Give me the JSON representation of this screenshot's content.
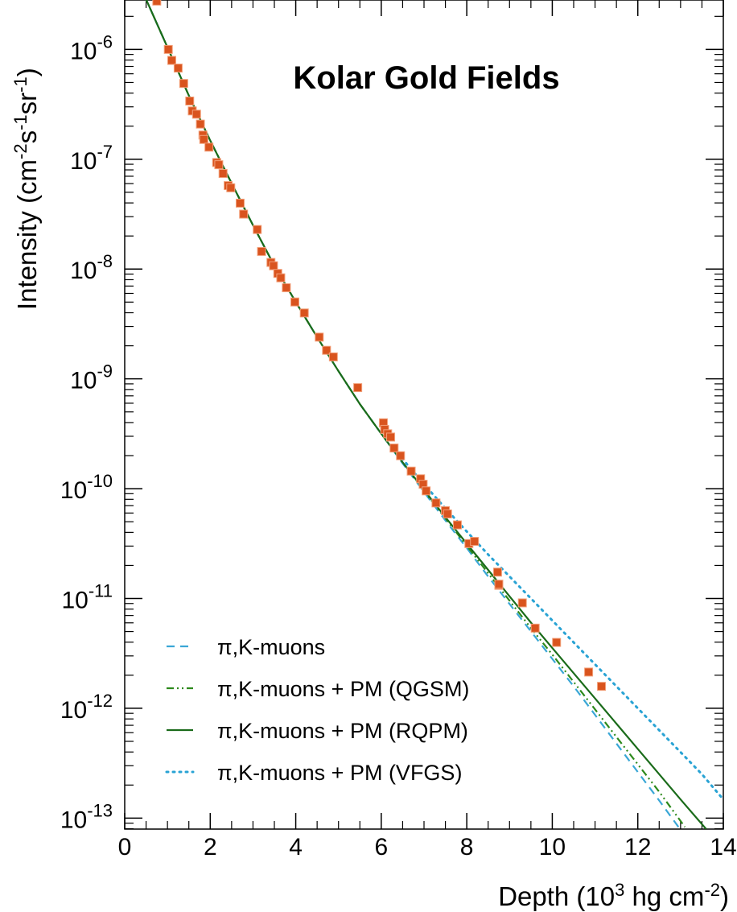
{
  "chart_data": {
    "type": "scatter",
    "title": "Kolar Gold Fields",
    "xlabel": {
      "main": "Depth  (10",
      "sup1": "3",
      "mid": " hg cm",
      "sup2": "-2",
      "end": ")"
    },
    "ylabel": {
      "main": "Intensity  (cm",
      "sup1": "-2",
      "mid1": "s",
      "sup2": "-1",
      "mid2": "sr",
      "sup3": "-1",
      "end": ")"
    },
    "xlim": [
      0,
      14
    ],
    "ylim_log10": [
      -13.1,
      -5.55
    ],
    "x_ticks": [
      0,
      2,
      4,
      6,
      8,
      10,
      12,
      14
    ],
    "x_tick_labels": [
      "0",
      "2",
      "4",
      "6",
      "8",
      "10",
      "12",
      "14"
    ],
    "y_ticks": [
      {
        "base": "10",
        "exp": "-6",
        "log": -6
      },
      {
        "base": "10",
        "exp": "-7",
        "log": -7
      },
      {
        "base": "10",
        "exp": "-8",
        "log": -8
      },
      {
        "base": "10",
        "exp": "-9",
        "log": -9
      },
      {
        "base": "10",
        "exp": "-10",
        "log": -10
      },
      {
        "base": "10",
        "exp": "-11",
        "log": -11
      },
      {
        "base": "10",
        "exp": "-12",
        "log": -12
      },
      {
        "base": "10",
        "exp": "-13",
        "log": -13
      }
    ],
    "data_points": {
      "name": "Kolar Gold Fields data",
      "color": "#d9541e",
      "x": [
        0.75,
        1.02,
        1.1,
        1.25,
        1.38,
        1.52,
        1.58,
        1.68,
        1.77,
        1.83,
        1.85,
        1.97,
        2.15,
        2.2,
        2.3,
        2.42,
        2.48,
        2.7,
        2.78,
        3.1,
        3.2,
        3.42,
        3.48,
        3.58,
        3.65,
        3.78,
        3.98,
        4.2,
        4.55,
        4.72,
        4.88,
        5.45,
        6.05,
        6.08,
        6.15,
        6.22,
        6.3,
        6.45,
        6.7,
        6.92,
        6.98,
        7.05,
        7.28,
        7.5,
        7.55,
        7.78,
        8.05,
        8.18,
        8.72,
        8.75,
        8.75,
        9.3,
        9.6,
        10.1,
        10.85,
        11.15
      ],
      "y_log10": [
        -5.56,
        -6.0,
        -6.1,
        -6.17,
        -6.31,
        -6.47,
        -6.56,
        -6.59,
        -6.68,
        -6.78,
        -6.82,
        -6.89,
        -7.03,
        -7.05,
        -7.13,
        -7.24,
        -7.26,
        -7.4,
        -7.5,
        -7.64,
        -7.84,
        -7.94,
        -7.97,
        -8.04,
        -8.08,
        -8.17,
        -8.3,
        -8.4,
        -8.62,
        -8.74,
        -8.8,
        -9.08,
        -9.4,
        -9.46,
        -9.5,
        -9.53,
        -9.63,
        -9.7,
        -9.84,
        -9.91,
        -9.96,
        -10.02,
        -10.13,
        -10.2,
        -10.23,
        -10.33,
        -10.5,
        -10.48,
        -10.76,
        -10.88,
        -10.87,
        -11.04,
        -11.27,
        -11.4,
        -11.67,
        -11.8
      ]
    },
    "series": [
      {
        "name": "π,K-muons",
        "style": "dashed",
        "color": "#3aa7d6",
        "x": [
          0.45,
          1.0,
          1.5,
          2.0,
          2.5,
          3.0,
          3.5,
          4.0,
          4.5,
          5.0,
          5.5,
          6.0,
          6.5,
          7.0,
          7.5,
          8.0,
          8.5,
          9.0,
          9.5,
          10.0,
          10.5,
          11.0,
          11.5,
          12.0,
          12.5,
          12.95
        ],
        "y_log10": [
          -5.5,
          -5.98,
          -6.42,
          -6.83,
          -7.22,
          -7.6,
          -7.97,
          -8.3,
          -8.62,
          -8.93,
          -9.23,
          -9.5,
          -9.77,
          -10.03,
          -10.29,
          -10.54,
          -10.8,
          -11.05,
          -11.3,
          -11.55,
          -11.8,
          -12.06,
          -12.32,
          -12.58,
          -12.84,
          -13.08
        ]
      },
      {
        "name": "π,K-muons + PM (QGSM)",
        "style": "dashdot",
        "color": "#2d8a1c",
        "x": [
          0.45,
          1.0,
          1.5,
          2.0,
          2.5,
          3.0,
          3.5,
          4.0,
          4.5,
          5.0,
          5.5,
          6.0,
          6.5,
          7.0,
          7.5,
          8.0,
          8.5,
          9.0,
          9.5,
          10.0,
          10.5,
          11.0,
          11.5,
          12.0,
          12.5,
          13.1
        ],
        "y_log10": [
          -5.5,
          -5.98,
          -6.42,
          -6.83,
          -7.22,
          -7.6,
          -7.97,
          -8.3,
          -8.62,
          -8.93,
          -9.23,
          -9.5,
          -9.76,
          -10.02,
          -10.27,
          -10.52,
          -10.77,
          -11.02,
          -11.27,
          -11.51,
          -11.76,
          -12.01,
          -12.26,
          -12.51,
          -12.76,
          -13.08
        ]
      },
      {
        "name": "π,K-muons + PM (RQPM)",
        "style": "solid",
        "color": "#1a6b1a",
        "x": [
          0.45,
          1.0,
          1.5,
          2.0,
          2.5,
          3.0,
          3.5,
          4.0,
          4.5,
          5.0,
          5.5,
          6.0,
          6.5,
          7.0,
          7.5,
          8.0,
          8.5,
          9.0,
          9.5,
          10.0,
          10.5,
          11.0,
          11.5,
          12.0,
          12.5,
          13.0,
          13.6
        ],
        "y_log10": [
          -5.5,
          -5.98,
          -6.42,
          -6.83,
          -7.22,
          -7.6,
          -7.97,
          -8.3,
          -8.62,
          -8.93,
          -9.23,
          -9.5,
          -9.76,
          -10.01,
          -10.26,
          -10.5,
          -10.74,
          -10.98,
          -11.22,
          -11.45,
          -11.68,
          -11.91,
          -12.14,
          -12.37,
          -12.6,
          -12.83,
          -13.1
        ]
      },
      {
        "name": "π,K-muons + PM (VFGS)",
        "style": "dotted",
        "color": "#29a3d4",
        "x": [
          6.3,
          6.5,
          7.0,
          7.5,
          8.0,
          8.5,
          9.0,
          9.5,
          10.0,
          10.5,
          11.0,
          11.5,
          12.0,
          12.5,
          13.0,
          13.5,
          14.0
        ],
        "y_log10": [
          -9.63,
          -9.73,
          -9.96,
          -10.18,
          -10.39,
          -10.6,
          -10.8,
          -11.0,
          -11.2,
          -11.4,
          -11.6,
          -11.8,
          -12.0,
          -12.2,
          -12.4,
          -12.6,
          -12.83
        ]
      }
    ],
    "legend": {
      "position": "bottom-left",
      "entries": [
        "π,K-muons",
        "π,K-muons + PM (QGSM)",
        "π,K-muons + PM (RQPM)",
        "π,K-muons + PM (VFGS)"
      ]
    }
  }
}
